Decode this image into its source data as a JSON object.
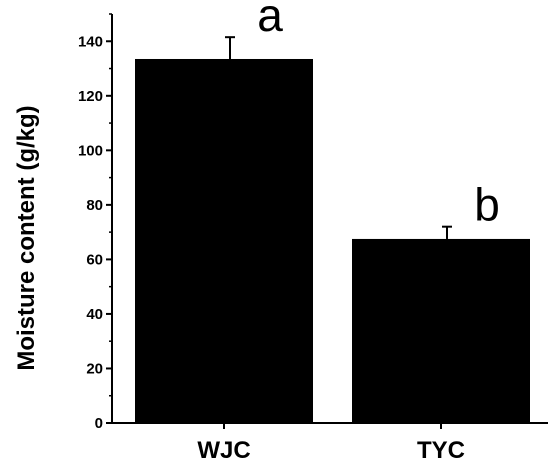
{
  "chart_data": {
    "type": "bar",
    "categories": [
      "WJC",
      "TYC"
    ],
    "values": [
      133.5,
      67.5
    ],
    "errors": [
      8,
      4.5
    ],
    "significance_labels": [
      "a",
      "b"
    ],
    "title": "",
    "xlabel": "",
    "ylabel": "Moisture content (g/kg)",
    "ylim": [
      0,
      150
    ],
    "yticks": [
      0,
      20,
      40,
      60,
      80,
      100,
      120,
      140
    ],
    "ytick_labels": [
      "0",
      "20",
      "40",
      "60",
      "80",
      "100",
      "120",
      "140"
    ],
    "grid": false,
    "legend": "none",
    "colors": {
      "bar": "#000000",
      "axis": "#000000",
      "background": "#ffffff"
    }
  }
}
